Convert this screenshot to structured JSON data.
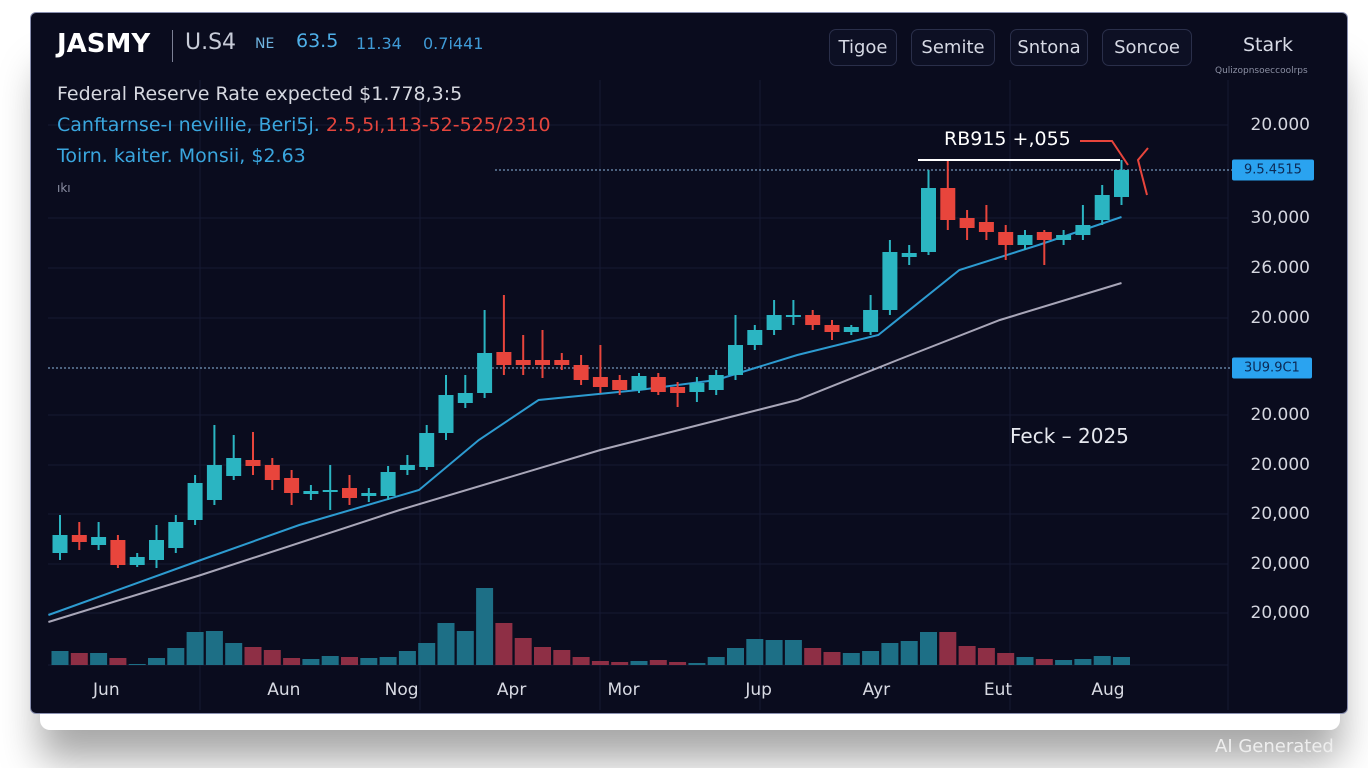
{
  "header": {
    "symbol": "JASMY",
    "pair": "U.S4",
    "tag": "NE",
    "price": "63.5",
    "change": "11.34",
    "volume": "0.7i441"
  },
  "buttons": [
    "Tigoe",
    "Semite",
    "Sntona",
    "Soncoe"
  ],
  "user": {
    "name": "Stark",
    "sub": "Qulizopnsoeccoolrps"
  },
  "info": {
    "line1": "Federal Reserve Rate expected $1.778,3:5",
    "line2_label": "Canftarnse-ı nevillie, Beri5j.",
    "line2_value": "2.5,5ı,113-52-525/2310",
    "line3": "Toirn. kaiter. Monsii, $2.63",
    "line4": "ıkı"
  },
  "annotations": {
    "peak_label": "RB915 +,055",
    "period_label": "Feck – 2025"
  },
  "watermark": "AI Generated",
  "colors": {
    "up": "#2bb5c2",
    "down": "#e8453c",
    "vol_up": "#1d6f86",
    "vol_down": "#8e2f45",
    "ma_fast": "#2d9bd0",
    "ma_slow": "#a8a6b8",
    "badge": "#2aa3f0",
    "bg": "#0a0c1e"
  },
  "chart_data": {
    "type": "candlestick",
    "title": "JASMY",
    "price_axis_labels": [
      "20.000",
      "30,000",
      "26.000",
      "20.000",
      "20.000",
      "20.000",
      "20,000",
      "20,000",
      "20,000"
    ],
    "price_badges": [
      {
        "label": "9.5.4515",
        "value": 98
      },
      {
        "label": "3U9.9C1",
        "value": 58.4
      }
    ],
    "x_labels": [
      {
        "label": "Jun",
        "index": 2.4
      },
      {
        "label": "Aun",
        "index": 11.6
      },
      {
        "label": "Nog",
        "index": 17.7
      },
      {
        "label": "Apr",
        "index": 23.4
      },
      {
        "label": "Mor",
        "index": 29.2
      },
      {
        "label": "Jup",
        "index": 36.2
      },
      {
        "label": "Ayr",
        "index": 42.3
      },
      {
        "label": "Eut",
        "index": 48.6
      },
      {
        "label": "Aug",
        "index": 54.3
      }
    ],
    "candles_ohlc": [
      [
        21.4,
        29,
        20,
        25
      ],
      [
        25,
        27.6,
        22,
        23.6
      ],
      [
        23,
        27.6,
        22,
        24.6
      ],
      [
        24,
        25,
        18.4,
        19
      ],
      [
        19,
        21.4,
        18.6,
        20.6
      ],
      [
        20,
        27,
        18.4,
        24
      ],
      [
        22.4,
        29,
        21.4,
        27.6
      ],
      [
        28,
        37,
        27,
        35.4
      ],
      [
        32,
        47,
        31,
        39
      ],
      [
        36.8,
        45,
        36,
        40.4
      ],
      [
        40,
        45.6,
        37,
        38.8
      ],
      [
        39,
        40.4,
        34,
        36
      ],
      [
        36.4,
        38,
        31,
        33.4
      ],
      [
        33.2,
        35,
        32,
        33.8
      ],
      [
        33.6,
        39,
        30,
        34
      ],
      [
        34.4,
        37,
        31,
        32.4
      ],
      [
        32.8,
        34.4,
        31.6,
        33.4
      ],
      [
        32.8,
        38.8,
        32,
        37.6
      ],
      [
        38,
        41,
        37,
        39
      ],
      [
        38.6,
        47,
        38,
        45.4
      ],
      [
        45.4,
        57,
        44,
        53
      ],
      [
        51.4,
        57,
        50.4,
        53.4
      ],
      [
        53.4,
        70,
        52.4,
        61.4
      ],
      [
        61.6,
        73,
        57,
        59
      ],
      [
        60,
        65,
        57,
        59
      ],
      [
        60,
        66,
        56.4,
        59
      ],
      [
        60,
        61.4,
        58,
        59
      ],
      [
        59,
        61,
        55,
        56
      ],
      [
        56.6,
        63,
        53.4,
        54.6
      ],
      [
        56,
        57,
        53,
        54
      ],
      [
        54,
        57.4,
        53.4,
        56.8
      ],
      [
        56.6,
        57.4,
        53,
        53.6
      ],
      [
        54.6,
        55.6,
        50.6,
        53.4
      ],
      [
        53.6,
        56.6,
        51.6,
        55.4
      ],
      [
        54,
        58,
        53,
        57
      ],
      [
        57,
        69,
        56,
        63
      ],
      [
        63,
        67,
        62,
        66
      ],
      [
        66,
        72,
        65,
        69
      ],
      [
        68.6,
        72,
        67,
        69
      ],
      [
        69,
        70,
        66,
        67
      ],
      [
        67,
        68,
        64,
        65.6
      ],
      [
        65.6,
        67,
        65,
        66.6
      ],
      [
        65.6,
        73,
        65,
        70
      ],
      [
        70,
        84,
        69,
        81.6
      ],
      [
        80.6,
        83,
        79,
        81.4
      ],
      [
        81.6,
        98,
        81,
        94.4
      ],
      [
        94.4,
        100,
        86,
        88
      ],
      [
        88.4,
        90,
        84,
        86.4
      ],
      [
        87.6,
        91,
        84,
        85.6
      ],
      [
        85.6,
        87,
        80,
        83
      ],
      [
        83,
        86,
        82,
        85
      ],
      [
        85.6,
        86,
        79,
        84
      ],
      [
        84,
        86,
        83,
        85
      ],
      [
        85,
        91,
        84,
        87
      ],
      [
        88,
        95,
        87,
        93
      ],
      [
        92.6,
        100,
        91,
        98
      ]
    ],
    "volume": [
      14,
      12,
      12,
      7,
      1,
      7,
      17,
      33,
      34,
      22,
      18,
      15,
      7,
      6,
      9,
      8,
      7,
      8,
      14,
      22,
      42,
      34,
      77,
      42,
      27,
      18,
      15,
      8,
      4,
      3,
      4,
      5,
      3,
      2,
      8,
      17,
      26,
      25,
      25,
      17,
      13,
      12,
      14,
      22,
      24,
      33,
      33,
      19,
      17,
      12,
      8,
      6,
      5,
      6,
      9,
      8
    ],
    "ma_fast": [
      [
        -0.6,
        9
      ],
      [
        7.3,
        20
      ],
      [
        12.4,
        27
      ],
      [
        18.6,
        34
      ],
      [
        21.7,
        44
      ],
      [
        24.8,
        52
      ],
      [
        30,
        54
      ],
      [
        34,
        56
      ],
      [
        38.2,
        61
      ],
      [
        42.4,
        65
      ],
      [
        46.6,
        78
      ],
      [
        50.7,
        83
      ],
      [
        55,
        88.6
      ]
    ],
    "ma_slow": [
      [
        -0.6,
        7.6
      ],
      [
        7.3,
        17
      ],
      [
        17.6,
        30
      ],
      [
        28,
        42
      ],
      [
        38.2,
        52
      ],
      [
        43.4,
        60
      ],
      [
        48.7,
        68
      ],
      [
        55,
        75.4
      ]
    ],
    "grid": true
  }
}
